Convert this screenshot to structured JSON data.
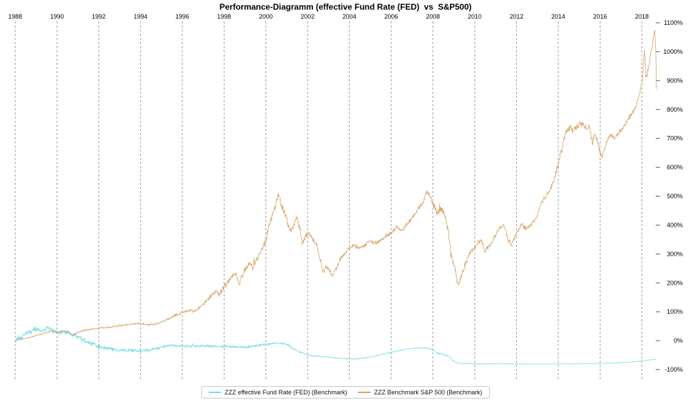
{
  "chart_data": {
    "type": "line",
    "title": "Performance-Diagramm (effective Fund Rate (FED)  vs  S&P500)",
    "x_ticks": [
      1988,
      1990,
      1992,
      1994,
      1996,
      1998,
      2000,
      2002,
      2004,
      2006,
      2008,
      2010,
      2012,
      2014,
      2016,
      2018
    ],
    "x_range": [
      1988,
      2018.7
    ],
    "y_ticks": [
      1100,
      1000,
      900,
      800,
      700,
      600,
      500,
      400,
      300,
      200,
      100,
      0,
      -100
    ],
    "y_tick_suffix": "%",
    "y_range": [
      -100,
      1100
    ],
    "grid": {
      "vertical": "dashed-gray",
      "horizontal": "none"
    },
    "legend_position": "bottom-center",
    "gridline_color": "#8f8f8f",
    "axis_text_color": "#000000",
    "series": [
      {
        "name": "ZZZ effective Fund Rate (FED) (Benchmark)",
        "color": "#74dce2",
        "noise": [
          [
            1988,
            9
          ],
          [
            1990,
            9
          ],
          [
            1991.5,
            7
          ],
          [
            1993,
            6
          ],
          [
            1995,
            5
          ],
          [
            1996,
            4.5
          ],
          [
            2000,
            4
          ],
          [
            2001.5,
            3
          ],
          [
            2002,
            1.5
          ],
          [
            2007.5,
            1.5
          ],
          [
            2008.3,
            3
          ],
          [
            2008.9,
            2
          ],
          [
            2009.3,
            0.6
          ],
          [
            2015,
            0.5
          ],
          [
            2018.7,
            0.8
          ]
        ],
        "anchors": [
          [
            1988.0,
            0
          ],
          [
            1988.15,
            12
          ],
          [
            1988.3,
            8
          ],
          [
            1988.5,
            22
          ],
          [
            1988.7,
            30
          ],
          [
            1988.9,
            38
          ],
          [
            1989.1,
            42
          ],
          [
            1989.3,
            34
          ],
          [
            1989.5,
            44
          ],
          [
            1989.7,
            38
          ],
          [
            1990.0,
            28
          ],
          [
            1990.3,
            32
          ],
          [
            1990.6,
            24
          ],
          [
            1990.9,
            17
          ],
          [
            1991.2,
            5
          ],
          [
            1991.5,
            -6
          ],
          [
            1991.8,
            -14
          ],
          [
            1992.1,
            -22
          ],
          [
            1992.5,
            -28
          ],
          [
            1993.0,
            -32
          ],
          [
            1993.5,
            -34
          ],
          [
            1994.0,
            -35
          ],
          [
            1994.4,
            -32
          ],
          [
            1994.8,
            -28
          ],
          [
            1995.0,
            -24
          ],
          [
            1995.2,
            -18
          ],
          [
            1995.5,
            -16
          ],
          [
            1996.0,
            -18
          ],
          [
            1996.5,
            -19
          ],
          [
            1997.0,
            -18
          ],
          [
            1997.5,
            -19
          ],
          [
            1998.0,
            -20
          ],
          [
            1998.5,
            -21
          ],
          [
            1999.0,
            -23
          ],
          [
            1999.3,
            -20
          ],
          [
            1999.6,
            -17
          ],
          [
            2000.0,
            -13
          ],
          [
            2000.3,
            -10
          ],
          [
            2000.6,
            -9
          ],
          [
            2000.9,
            -11
          ],
          [
            2001.1,
            -16
          ],
          [
            2001.3,
            -28
          ],
          [
            2001.6,
            -38
          ],
          [
            2001.9,
            -47
          ],
          [
            2002.2,
            -52
          ],
          [
            2002.6,
            -54
          ],
          [
            2003.0,
            -56
          ],
          [
            2003.4,
            -60
          ],
          [
            2003.7,
            -62
          ],
          [
            2004.0,
            -63
          ],
          [
            2004.3,
            -63
          ],
          [
            2004.6,
            -61
          ],
          [
            2005.0,
            -56
          ],
          [
            2005.4,
            -50
          ],
          [
            2005.8,
            -44
          ],
          [
            2006.2,
            -37
          ],
          [
            2006.6,
            -31
          ],
          [
            2007.0,
            -27
          ],
          [
            2007.4,
            -25
          ],
          [
            2007.8,
            -26
          ],
          [
            2008.0,
            -32
          ],
          [
            2008.2,
            -42
          ],
          [
            2008.5,
            -48
          ],
          [
            2008.8,
            -55
          ],
          [
            2008.95,
            -68
          ],
          [
            2009.1,
            -76
          ],
          [
            2009.4,
            -79
          ],
          [
            2009.8,
            -80
          ],
          [
            2011.0,
            -80
          ],
          [
            2013.0,
            -81
          ],
          [
            2015.0,
            -80
          ],
          [
            2015.8,
            -79
          ],
          [
            2016.3,
            -78
          ],
          [
            2016.8,
            -77
          ],
          [
            2017.2,
            -75
          ],
          [
            2017.6,
            -73
          ],
          [
            2018.0,
            -70
          ],
          [
            2018.35,
            -67
          ],
          [
            2018.7,
            -64
          ]
        ]
      },
      {
        "name": "ZZZ Benchmark S&P 500 (Benchmark)",
        "color": "#d3a264",
        "noise": [
          [
            1988,
            1.5
          ],
          [
            1992,
            2.5
          ],
          [
            1995,
            3.5
          ],
          [
            1998,
            8
          ],
          [
            2000,
            11
          ],
          [
            2002,
            9
          ],
          [
            2004,
            6
          ],
          [
            2007,
            7
          ],
          [
            2008.8,
            11
          ],
          [
            2010,
            8
          ],
          [
            2013,
            7
          ],
          [
            2015,
            11
          ],
          [
            2016.8,
            6
          ],
          [
            2017.8,
            7
          ],
          [
            2018.7,
            13
          ]
        ],
        "anchors": [
          [
            1988.0,
            2
          ],
          [
            1988.3,
            6
          ],
          [
            1988.6,
            10
          ],
          [
            1989.0,
            18
          ],
          [
            1989.5,
            28
          ],
          [
            1989.8,
            33
          ],
          [
            1990.1,
            30
          ],
          [
            1990.5,
            33
          ],
          [
            1990.75,
            21
          ],
          [
            1991.0,
            28
          ],
          [
            1991.3,
            36
          ],
          [
            1992.0,
            44
          ],
          [
            1992.5,
            46
          ],
          [
            1993.0,
            52
          ],
          [
            1993.5,
            56
          ],
          [
            1994.0,
            60
          ],
          [
            1994.3,
            55
          ],
          [
            1994.7,
            58
          ],
          [
            1995.0,
            64
          ],
          [
            1995.5,
            82
          ],
          [
            1996.0,
            98
          ],
          [
            1996.35,
            106
          ],
          [
            1996.55,
            99
          ],
          [
            1997.0,
            126
          ],
          [
            1997.35,
            152
          ],
          [
            1997.6,
            172
          ],
          [
            1997.75,
            158
          ],
          [
            1998.0,
            186
          ],
          [
            1998.3,
            216
          ],
          [
            1998.55,
            236
          ],
          [
            1998.7,
            196
          ],
          [
            1999.0,
            246
          ],
          [
            1999.2,
            266
          ],
          [
            1999.4,
            254
          ],
          [
            1999.6,
            288
          ],
          [
            1999.8,
            312
          ],
          [
            2000.0,
            348
          ],
          [
            2000.15,
            396
          ],
          [
            2000.3,
            432
          ],
          [
            2000.45,
            466
          ],
          [
            2000.6,
            505
          ],
          [
            2000.75,
            466
          ],
          [
            2000.9,
            442
          ],
          [
            2001.0,
            420
          ],
          [
            2001.15,
            376
          ],
          [
            2001.3,
            396
          ],
          [
            2001.5,
            424
          ],
          [
            2001.65,
            380
          ],
          [
            2001.75,
            332
          ],
          [
            2001.9,
            362
          ],
          [
            2002.05,
            374
          ],
          [
            2002.25,
            352
          ],
          [
            2002.45,
            328
          ],
          [
            2002.6,
            282
          ],
          [
            2002.75,
            236
          ],
          [
            2002.9,
            256
          ],
          [
            2003.05,
            244
          ],
          [
            2003.2,
            226
          ],
          [
            2003.35,
            248
          ],
          [
            2003.55,
            282
          ],
          [
            2003.75,
            300
          ],
          [
            2004.0,
            320
          ],
          [
            2004.25,
            330
          ],
          [
            2004.5,
            318
          ],
          [
            2004.75,
            330
          ],
          [
            2005.0,
            344
          ],
          [
            2005.3,
            338
          ],
          [
            2005.6,
            354
          ],
          [
            2006.0,
            374
          ],
          [
            2006.3,
            394
          ],
          [
            2006.5,
            380
          ],
          [
            2006.75,
            404
          ],
          [
            2007.0,
            424
          ],
          [
            2007.3,
            456
          ],
          [
            2007.55,
            484
          ],
          [
            2007.7,
            515
          ],
          [
            2007.85,
            505
          ],
          [
            2008.0,
            474
          ],
          [
            2008.2,
            440
          ],
          [
            2008.4,
            458
          ],
          [
            2008.6,
            428
          ],
          [
            2008.75,
            368
          ],
          [
            2008.9,
            288
          ],
          [
            2009.05,
            255
          ],
          [
            2009.2,
            184
          ],
          [
            2009.35,
            225
          ],
          [
            2009.55,
            266
          ],
          [
            2009.75,
            304
          ],
          [
            2010.0,
            322
          ],
          [
            2010.3,
            350
          ],
          [
            2010.5,
            312
          ],
          [
            2010.75,
            336
          ],
          [
            2011.0,
            366
          ],
          [
            2011.2,
            392
          ],
          [
            2011.4,
            400
          ],
          [
            2011.6,
            346
          ],
          [
            2011.75,
            330
          ],
          [
            2011.9,
            356
          ],
          [
            2012.05,
            376
          ],
          [
            2012.25,
            406
          ],
          [
            2012.45,
            386
          ],
          [
            2012.65,
            400
          ],
          [
            2012.85,
            412
          ],
          [
            2013.0,
            436
          ],
          [
            2013.2,
            478
          ],
          [
            2013.4,
            500
          ],
          [
            2013.6,
            522
          ],
          [
            2013.8,
            556
          ],
          [
            2014.0,
            612
          ],
          [
            2014.2,
            676
          ],
          [
            2014.35,
            718
          ],
          [
            2014.55,
            738
          ],
          [
            2014.75,
            728
          ],
          [
            2014.95,
            746
          ],
          [
            2015.15,
            750
          ],
          [
            2015.35,
            736
          ],
          [
            2015.5,
            742
          ],
          [
            2015.62,
            682
          ],
          [
            2015.72,
            714
          ],
          [
            2015.85,
            700
          ],
          [
            2016.0,
            652
          ],
          [
            2016.1,
            638
          ],
          [
            2016.3,
            688
          ],
          [
            2016.5,
            714
          ],
          [
            2016.7,
            698
          ],
          [
            2016.9,
            718
          ],
          [
            2017.05,
            732
          ],
          [
            2017.25,
            754
          ],
          [
            2017.45,
            776
          ],
          [
            2017.65,
            800
          ],
          [
            2017.85,
            838
          ],
          [
            2018.0,
            892
          ],
          [
            2018.08,
            962
          ],
          [
            2018.13,
            1002
          ],
          [
            2018.2,
            906
          ],
          [
            2018.33,
            948
          ],
          [
            2018.45,
            1000
          ],
          [
            2018.55,
            1046
          ],
          [
            2018.62,
            1072
          ],
          [
            2018.66,
            1018
          ],
          [
            2018.7,
            874
          ]
        ]
      }
    ]
  }
}
